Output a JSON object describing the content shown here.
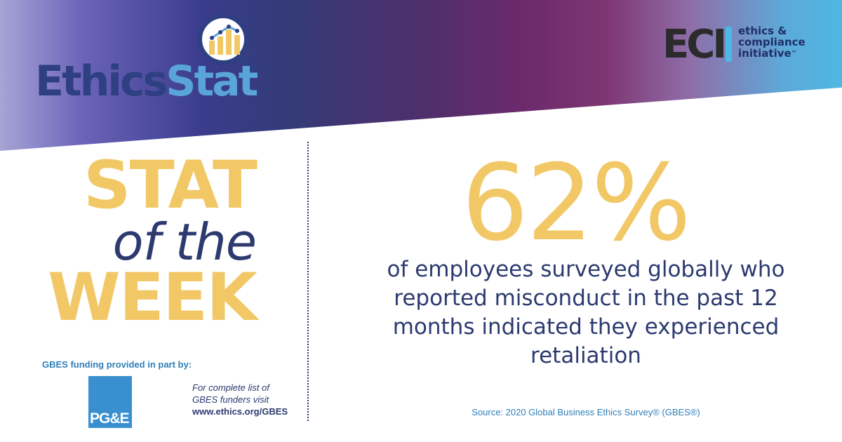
{
  "header": {
    "logo_part1": "Ethics",
    "logo_part2": "Stat",
    "eci_letters": "ECI",
    "eci_line1": "ethics &",
    "eci_line2": "compliance",
    "eci_line3": "initiative",
    "eci_tm": "™"
  },
  "left": {
    "line1": "STAT",
    "line2": "of the",
    "line3": "WEEK",
    "funding_label": "GBES funding provided in part by:",
    "sponsor_logo": "PG&E",
    "note_line1": "For complete list of",
    "note_line2": "GBES funders visit",
    "note_url": "www.ethics.org/GBES"
  },
  "main": {
    "stat_value": "62%",
    "desc_line1": "of employees surveyed globally who",
    "desc_line2": "reported misconduct in the past 12",
    "desc_line3": "months indicated they experienced",
    "desc_line4": "retaliation",
    "source": "Source: 2020 Global Business Ethics Survey® (GBES®)"
  },
  "colors": {
    "accent_yellow": "#f2c867",
    "navy": "#2c3a70",
    "blue": "#59a4d8",
    "eci_cyan": "#4fb7e3"
  },
  "icons": {
    "magnifier": "magnifier-chart-icon"
  }
}
